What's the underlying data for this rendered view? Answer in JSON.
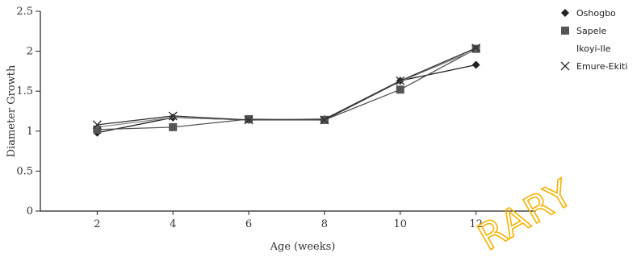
{
  "chart_data": {
    "type": "line",
    "xlabel": "Age (weeks)",
    "ylabel": "Diameter Growth",
    "x": [
      2,
      4,
      6,
      8,
      10,
      12
    ],
    "xticks": [
      "2",
      "4",
      "6",
      "8",
      "10",
      "12"
    ],
    "yticks": [
      "0",
      "0.5",
      "1",
      "1.5",
      "2",
      "2.5"
    ],
    "xlim": [
      0.5,
      13.5
    ],
    "ylim": [
      0,
      2.5
    ],
    "grid": false,
    "legend_position": "right",
    "series": [
      {
        "name": "Oshogbo",
        "marker": "diamond",
        "color": "#222222",
        "values": [
          0.98,
          1.17,
          1.14,
          1.15,
          1.63,
          1.83
        ]
      },
      {
        "name": "Sapele",
        "marker": "square",
        "color": "#555555",
        "values": [
          1.02,
          1.05,
          1.15,
          1.14,
          1.52,
          2.03
        ]
      },
      {
        "name": "Ikoyi-Ile",
        "marker": "none",
        "color": "#8a8a8a",
        "values": [
          1.05,
          1.17,
          1.14,
          1.14,
          1.62,
          2.02
        ]
      },
      {
        "name": "Emure-Ekiti",
        "marker": "x",
        "color": "#333333",
        "values": [
          1.08,
          1.19,
          1.14,
          1.14,
          1.63,
          2.04
        ]
      }
    ]
  },
  "watermark": {
    "text": "RARY",
    "color": "#f5b200"
  }
}
